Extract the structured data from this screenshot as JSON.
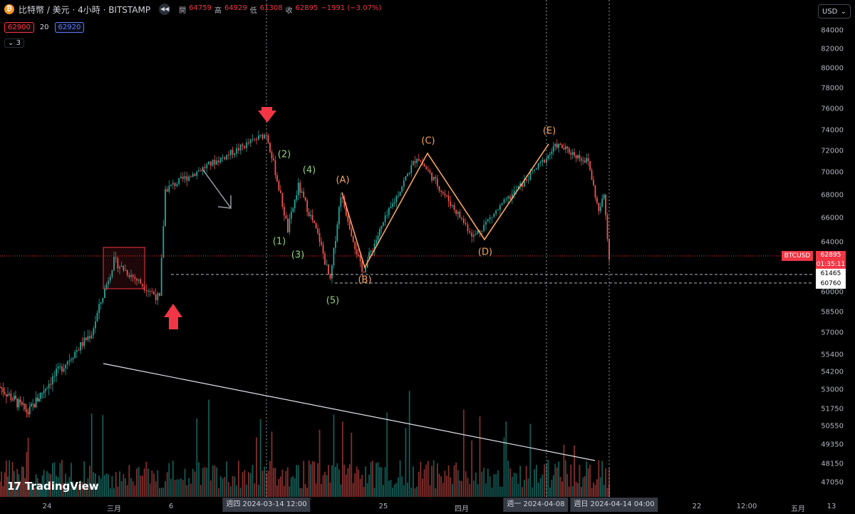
{
  "header": {
    "logo": "₿",
    "symbol": "比特幣 / 美元 · 4小時 · BITSTAMP",
    "nav_icon": "rewind-icon",
    "open_label": "開",
    "open": "64759",
    "high_label": "高",
    "high": "64929",
    "low_label": "低",
    "low": "61308",
    "close_label": "收",
    "close": "62895",
    "change": "−1991 (−3.07%)"
  },
  "quote": {
    "bid": "62900",
    "spread": "20",
    "ask": "62920"
  },
  "indicators_toggle": {
    "count": "3"
  },
  "currency": {
    "value": "USD"
  },
  "colors": {
    "up": "#26a69a",
    "down": "#ef5350",
    "wave_green": "#8fcf79",
    "wave_orange": "#f5a45d",
    "price_line": "#f23645",
    "background": "#000000"
  },
  "price_tags": {
    "symbol": "BTCUSD",
    "current": "62895",
    "countdown": "01:35:11",
    "level1": "61465",
    "level2": "60760"
  },
  "wave_labels": {
    "impulse": [
      "(1)",
      "(2)",
      "(3)",
      "(4)",
      "(5)"
    ],
    "corrective": [
      "(A)",
      "(B)",
      "(C)",
      "(D)",
      "(E)"
    ]
  },
  "branding": {
    "name": "TradingView",
    "mark": "17"
  },
  "chart_data": {
    "type": "candlestick",
    "y_ticks": [
      "84000",
      "82000",
      "80000",
      "78000",
      "76000",
      "74000",
      "72000",
      "70000",
      "68000",
      "66000",
      "64000",
      "62000",
      "60000",
      "58500",
      "57000",
      "55400",
      "54200",
      "53000",
      "51750",
      "50550",
      "49350",
      "48150",
      "47050"
    ],
    "x_ticks": [
      "24",
      "三月",
      "6",
      "25",
      "四月",
      "22",
      "12:00",
      "五月",
      "13"
    ],
    "x_labels_highlighted": [
      "週四 2024-03-14  12:00",
      "週一 2024-04-08",
      "週日 2024-04-14  04:00"
    ],
    "key_points": [
      {
        "time": "2024-02-22",
        "price": 51500
      },
      {
        "time": "2024-02-28",
        "price": 57000
      },
      {
        "time": "2024-03-01",
        "price": 62500
      },
      {
        "time": "2024-03-05",
        "price": 59500
      },
      {
        "time": "2024-03-05",
        "price": 68500
      },
      {
        "time": "2024-03-11",
        "price": 71800
      },
      {
        "time": "2024-03-14",
        "price": 73700
      },
      {
        "time": "2024-03-16",
        "price": 65000
      },
      {
        "time": "2024-03-17",
        "price": 68800
      },
      {
        "time": "2024-03-19",
        "price": 64200
      },
      {
        "time": "2024-03-20",
        "price": 60800
      },
      {
        "time": "2024-03-21",
        "price": 68100
      },
      {
        "time": "2024-03-23",
        "price": 61600
      },
      {
        "time": "2024-03-28",
        "price": 71500
      },
      {
        "time": "2024-04-02",
        "price": 64500
      },
      {
        "time": "2024-04-06",
        "price": 69000
      },
      {
        "time": "2024-04-09",
        "price": 72600
      },
      {
        "time": "2024-04-12",
        "price": 71000
      },
      {
        "time": "2024-04-13",
        "price": 66500
      },
      {
        "time": "2024-04-13",
        "price": 68000
      },
      {
        "time": "2024-04-14",
        "price": 62895
      }
    ],
    "horizontal_levels": [
      62895,
      61465,
      60760
    ],
    "vertical_markers": [
      "2024-03-14 12:00",
      "2024-04-08",
      "2024-04-14 04:00"
    ],
    "grid": false
  }
}
